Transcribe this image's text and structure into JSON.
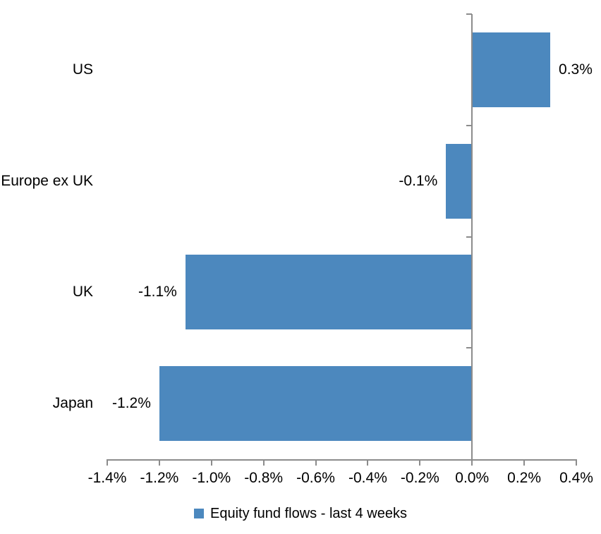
{
  "chart_data": {
    "type": "bar",
    "orientation": "horizontal",
    "title": "",
    "xlabel": "",
    "ylabel": "",
    "categories": [
      "US",
      "Europe ex UK",
      "UK",
      "Japan"
    ],
    "series": [
      {
        "name": "Equity fund flows - last 4 weeks",
        "values": [
          0.3,
          -0.1,
          -1.1,
          -1.2
        ],
        "data_labels": [
          "0.3%",
          "-0.1%",
          "-1.1%",
          "-1.2%"
        ]
      }
    ],
    "xlim": [
      -1.4,
      0.4
    ],
    "x_ticks": [
      -1.4,
      -1.2,
      -1.0,
      -0.8,
      -0.6,
      -0.4,
      -0.2,
      0.0,
      0.2,
      0.4
    ],
    "x_tick_labels": [
      "-1.4%",
      "-1.2%",
      "-1.0%",
      "-0.8%",
      "-0.6%",
      "-0.4%",
      "-0.2%",
      "0.0%",
      "0.2%",
      "0.4%"
    ],
    "grid": false,
    "legend_position": "bottom",
    "colors": {
      "bar": "#4C88BE",
      "axis": "#8C8C8C",
      "text": "#000000",
      "background": "#FFFFFF"
    }
  },
  "legend": {
    "label": "Equity fund flows - last 4 weeks"
  }
}
